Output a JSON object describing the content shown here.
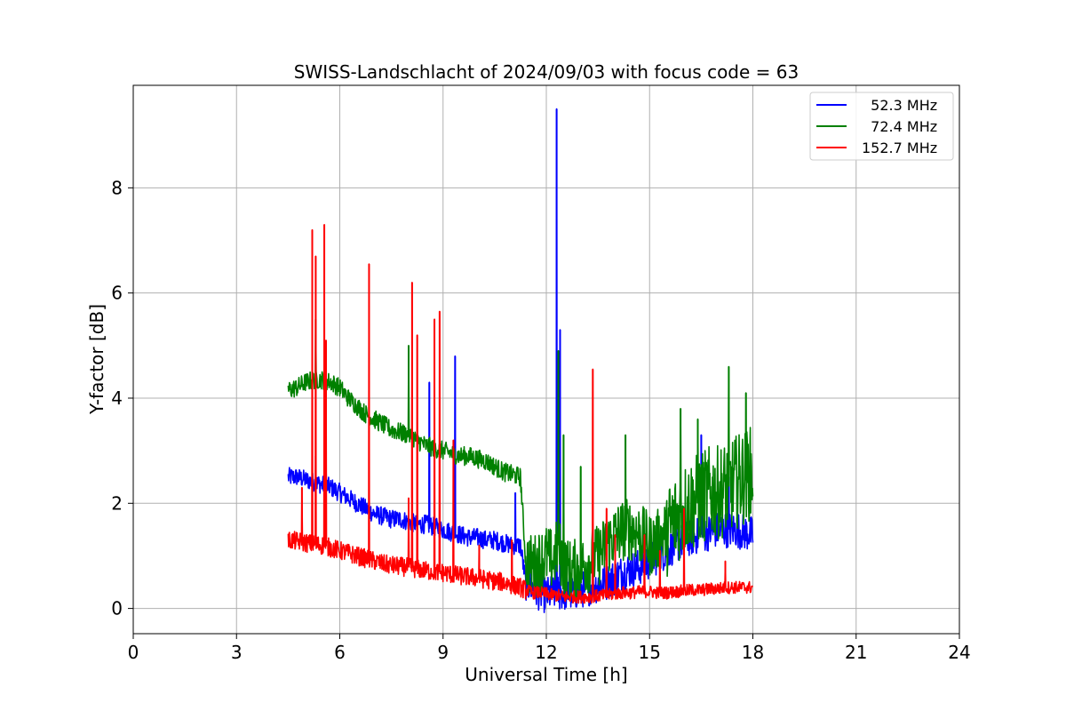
{
  "chart_data": {
    "type": "line",
    "title": "SWISS-Landschlacht of 2024/09/03 with focus code = 63",
    "xlabel": "Universal Time [h]",
    "ylabel": "Y-factor [dB]",
    "xlim": [
      0,
      24
    ],
    "ylim": [
      -0.48,
      9.95
    ],
    "xticks": [
      0,
      3,
      6,
      9,
      12,
      15,
      18,
      21,
      24
    ],
    "yticks": [
      0,
      2,
      4,
      6,
      8
    ],
    "grid": true,
    "legend_position": "top-right",
    "series": [
      {
        "name": "  52.3 MHz",
        "color": "#0000ff",
        "x": [
          4.5,
          4.75,
          5.0,
          5.25,
          5.5,
          5.75,
          6.0,
          6.25,
          6.5,
          6.75,
          7.0,
          7.25,
          7.5,
          7.75,
          8.0,
          8.25,
          8.5,
          8.75,
          9.0,
          9.25,
          9.5,
          9.75,
          10.0,
          10.25,
          10.5,
          10.75,
          11.0,
          11.25,
          11.4,
          11.6,
          11.8,
          12.0,
          12.2,
          12.35,
          12.5,
          12.75,
          13.0,
          13.25,
          13.5,
          13.75,
          14.0,
          14.25,
          14.5,
          14.75,
          15.0,
          15.25,
          15.5,
          15.75,
          16.0,
          16.25,
          16.5,
          16.75,
          17.0,
          17.25,
          17.5,
          17.75,
          18.0
        ],
        "values": [
          2.5,
          2.5,
          2.45,
          2.4,
          2.35,
          2.3,
          2.2,
          2.1,
          2.0,
          1.9,
          1.8,
          1.75,
          1.7,
          1.7,
          1.65,
          1.6,
          1.6,
          1.55,
          1.5,
          1.45,
          1.4,
          1.35,
          1.35,
          1.3,
          1.3,
          1.25,
          1.2,
          1.2,
          0.5,
          0.4,
          0.3,
          0.25,
          0.3,
          0.3,
          0.3,
          0.3,
          0.35,
          0.4,
          0.45,
          0.5,
          0.6,
          0.7,
          0.75,
          0.8,
          0.9,
          1.0,
          1.1,
          1.2,
          1.3,
          1.35,
          1.4,
          1.45,
          1.5,
          1.5,
          1.5,
          1.45,
          1.4
        ],
        "spikes": [
          [
            5.3,
            2.9
          ],
          [
            5.6,
            2.8
          ],
          [
            8.6,
            4.3
          ],
          [
            9.35,
            4.8
          ],
          [
            11.1,
            2.2
          ],
          [
            12.3,
            9.5
          ],
          [
            12.4,
            5.3
          ],
          [
            16.5,
            3.3
          ],
          [
            17.3,
            2.5
          ]
        ]
      },
      {
        "name": "  72.4 MHz",
        "color": "#008000",
        "x": [
          4.5,
          4.75,
          5.0,
          5.25,
          5.5,
          5.75,
          6.0,
          6.25,
          6.5,
          6.75,
          7.0,
          7.25,
          7.5,
          7.75,
          8.0,
          8.25,
          8.5,
          8.75,
          9.0,
          9.25,
          9.5,
          9.75,
          10.0,
          10.25,
          10.5,
          10.75,
          11.0,
          11.25,
          11.4,
          11.6,
          11.8,
          12.0,
          12.2,
          12.35,
          12.5,
          12.75,
          13.0,
          13.25,
          13.5,
          13.75,
          14.0,
          14.25,
          14.5,
          14.75,
          15.0,
          15.25,
          15.5,
          15.75,
          16.0,
          16.25,
          16.5,
          16.75,
          17.0,
          17.25,
          17.5,
          17.75,
          18.0
        ],
        "values": [
          4.15,
          4.2,
          4.3,
          4.35,
          4.35,
          4.3,
          4.2,
          4.0,
          3.85,
          3.7,
          3.6,
          3.5,
          3.4,
          3.35,
          3.3,
          3.2,
          3.1,
          3.05,
          3.0,
          2.95,
          2.9,
          2.9,
          2.85,
          2.8,
          2.7,
          2.6,
          2.55,
          2.5,
          0.9,
          0.8,
          0.9,
          1.0,
          0.9,
          1.2,
          0.8,
          0.7,
          0.8,
          0.9,
          1.0,
          1.2,
          1.4,
          1.5,
          1.5,
          1.4,
          1.2,
          1.3,
          1.5,
          1.7,
          1.9,
          2.0,
          2.1,
          2.2,
          2.2,
          2.3,
          2.4,
          2.5,
          2.6
        ],
        "spikes": [
          [
            5.3,
            5.5
          ],
          [
            8.0,
            5.0
          ],
          [
            12.35,
            4.9
          ],
          [
            12.5,
            3.3
          ],
          [
            13.0,
            2.7
          ],
          [
            14.3,
            3.3
          ],
          [
            15.9,
            3.8
          ],
          [
            16.4,
            3.6
          ],
          [
            17.3,
            4.6
          ],
          [
            17.8,
            4.1
          ]
        ]
      },
      {
        "name": "152.7 MHz",
        "color": "#ff0000",
        "x": [
          4.5,
          4.75,
          5.0,
          5.25,
          5.5,
          5.75,
          6.0,
          6.25,
          6.5,
          6.75,
          7.0,
          7.25,
          7.5,
          7.75,
          8.0,
          8.25,
          8.5,
          8.75,
          9.0,
          9.25,
          9.5,
          9.75,
          10.0,
          10.25,
          10.5,
          10.75,
          11.0,
          11.25,
          11.4,
          11.6,
          11.8,
          12.0,
          12.2,
          12.35,
          12.5,
          12.75,
          13.0,
          13.25,
          13.5,
          13.75,
          14.0,
          14.25,
          14.5,
          14.75,
          15.0,
          15.25,
          15.5,
          15.75,
          16.0,
          16.25,
          16.5,
          16.75,
          17.0,
          17.25,
          17.5,
          17.75,
          18.0
        ],
        "values": [
          1.3,
          1.28,
          1.25,
          1.22,
          1.2,
          1.15,
          1.1,
          1.05,
          1.0,
          0.95,
          0.9,
          0.85,
          0.82,
          0.8,
          0.78,
          0.75,
          0.72,
          0.7,
          0.68,
          0.65,
          0.62,
          0.6,
          0.58,
          0.55,
          0.52,
          0.5,
          0.45,
          0.4,
          0.35,
          0.3,
          0.3,
          0.28,
          0.25,
          0.25,
          0.22,
          0.22,
          0.22,
          0.22,
          0.24,
          0.25,
          0.28,
          0.3,
          0.3,
          0.32,
          0.32,
          0.3,
          0.3,
          0.32,
          0.33,
          0.35,
          0.35,
          0.37,
          0.38,
          0.4,
          0.4,
          0.4,
          0.4
        ],
        "spikes": [
          [
            4.9,
            2.3
          ],
          [
            5.2,
            7.2
          ],
          [
            5.3,
            6.7
          ],
          [
            5.55,
            7.3
          ],
          [
            5.6,
            5.1
          ],
          [
            6.85,
            6.55
          ],
          [
            8.0,
            2.1
          ],
          [
            8.1,
            6.2
          ],
          [
            8.25,
            5.2
          ],
          [
            8.75,
            5.5
          ],
          [
            8.9,
            5.65
          ],
          [
            9.3,
            3.2
          ],
          [
            10.05,
            1.2
          ],
          [
            11.0,
            1.3
          ],
          [
            13.35,
            4.55
          ],
          [
            13.75,
            1.9
          ],
          [
            14.0,
            1.4
          ],
          [
            14.85,
            1.4
          ],
          [
            15.3,
            1.1
          ],
          [
            16.0,
            1.9
          ],
          [
            17.2,
            0.9
          ]
        ]
      }
    ]
  }
}
